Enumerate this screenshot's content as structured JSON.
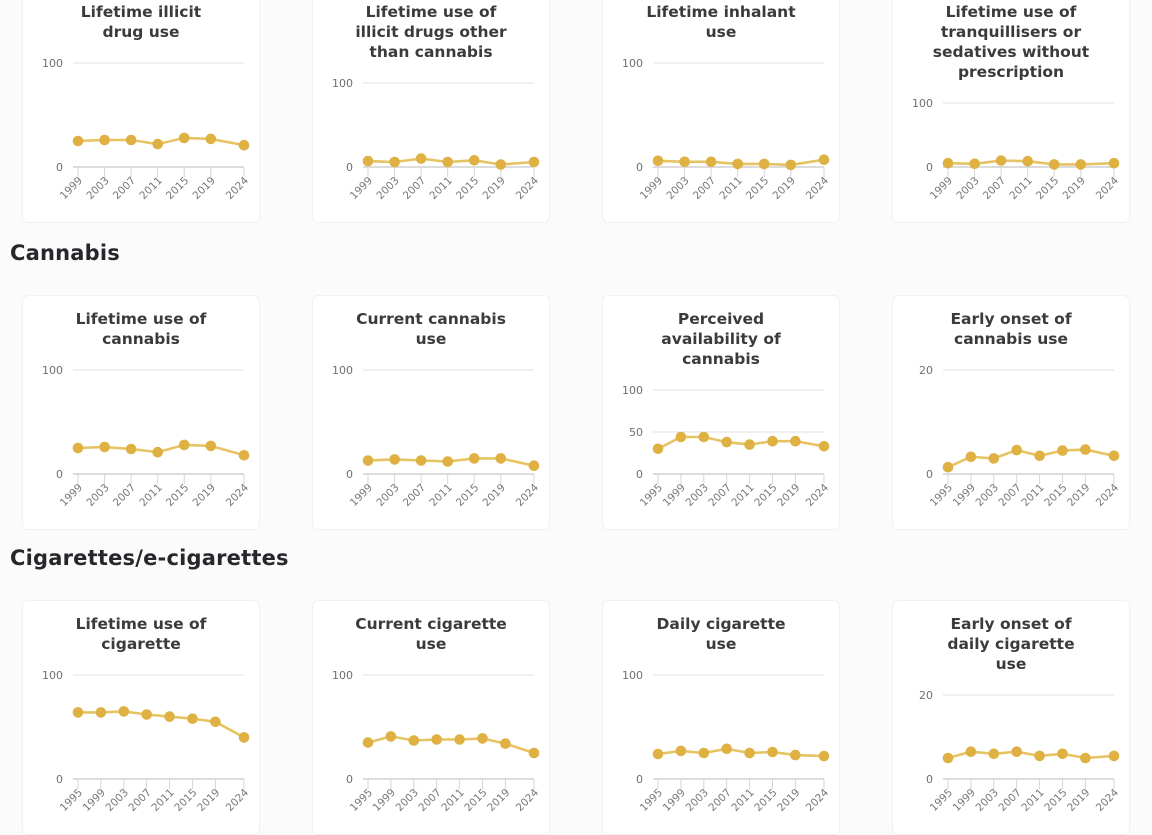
{
  "page": {
    "background": "#fbfbfb",
    "card_background": "#ffffff"
  },
  "colors": {
    "series_line": "#e7c463",
    "series_marker": "#dfb042",
    "gridline": "#e2e2e2",
    "axis_line": "#c7c7c7",
    "axis_tick": "#d6d6d6",
    "y_label": "#6f6f6f",
    "x_label": "#777777",
    "chart_title": "#3b3b3b",
    "section_header": "#26262b"
  },
  "sections": [
    {
      "header": null,
      "charts": [
        0,
        1,
        2,
        3
      ]
    },
    {
      "header": "Cannabis",
      "charts": [
        4,
        5,
        6,
        7
      ]
    },
    {
      "header": "Cigarettes/e-cigarettes",
      "charts": [
        8,
        9,
        10,
        11
      ]
    }
  ],
  "chart_data": [
    {
      "type": "line",
      "title": [
        "Lifetime illicit",
        "drug use"
      ],
      "x": [
        1999,
        2003,
        2007,
        2011,
        2015,
        2019,
        2024
      ],
      "values": [
        25,
        26,
        26,
        22,
        28,
        27,
        21
      ],
      "ylim": [
        0,
        100
      ],
      "yticks": [
        0,
        100
      ],
      "grid": true,
      "legend": "none"
    },
    {
      "type": "line",
      "title": [
        "Lifetime use of",
        "illicit drugs other",
        "than cannabis"
      ],
      "x": [
        1999,
        2003,
        2007,
        2011,
        2015,
        2019,
        2024
      ],
      "values": [
        7,
        6,
        10,
        6,
        8,
        3,
        6
      ],
      "ylim": [
        0,
        100
      ],
      "yticks": [
        0,
        100
      ],
      "grid": true,
      "legend": "none"
    },
    {
      "type": "line",
      "title": [
        "Lifetime inhalant",
        "use"
      ],
      "x": [
        1999,
        2003,
        2007,
        2011,
        2015,
        2019,
        2024
      ],
      "values": [
        6,
        5,
        5,
        3,
        3,
        2,
        7
      ],
      "ylim": [
        0,
        100
      ],
      "yticks": [
        0,
        100
      ],
      "grid": true,
      "legend": "none"
    },
    {
      "type": "line",
      "title": [
        "Lifetime use of",
        "tranquillisers or",
        "sedatives without",
        "prescription"
      ],
      "x": [
        1999,
        2003,
        2007,
        2011,
        2015,
        2019,
        2024
      ],
      "values": [
        6,
        5,
        10,
        9,
        4,
        4,
        6
      ],
      "ylim": [
        0,
        100
      ],
      "yticks": [
        0,
        100
      ],
      "grid": true,
      "legend": "none"
    },
    {
      "type": "line",
      "title": [
        "Lifetime use of",
        "cannabis"
      ],
      "x": [
        1999,
        2003,
        2007,
        2011,
        2015,
        2019,
        2024
      ],
      "values": [
        25,
        26,
        24,
        21,
        28,
        27,
        18
      ],
      "ylim": [
        0,
        100
      ],
      "yticks": [
        0,
        100
      ],
      "grid": true,
      "legend": "none"
    },
    {
      "type": "line",
      "title": [
        "Current cannabis",
        "use"
      ],
      "x": [
        1999,
        2003,
        2007,
        2011,
        2015,
        2019,
        2024
      ],
      "values": [
        13,
        14,
        13,
        12,
        15,
        15,
        8
      ],
      "ylim": [
        0,
        100
      ],
      "yticks": [
        0,
        100
      ],
      "grid": true,
      "legend": "none"
    },
    {
      "type": "line",
      "title": [
        "Perceived",
        "availability of",
        "cannabis"
      ],
      "x": [
        1995,
        1999,
        2003,
        2007,
        2011,
        2015,
        2019,
        2024
      ],
      "values": [
        30,
        44,
        44,
        38,
        35,
        39,
        39,
        33
      ],
      "ylim": [
        0,
        100
      ],
      "yticks": [
        0,
        50,
        100
      ],
      "grid": true,
      "legend": "none"
    },
    {
      "type": "line",
      "title": [
        "Early onset of",
        "cannabis use"
      ],
      "x": [
        1995,
        1999,
        2003,
        2007,
        2011,
        2015,
        2019,
        2024
      ],
      "values": [
        1.3,
        3.3,
        3,
        4.6,
        3.5,
        4.5,
        4.7,
        3.5
      ],
      "ylim": [
        0,
        20
      ],
      "yticks": [
        0,
        20
      ],
      "grid": true,
      "legend": "none"
    },
    {
      "type": "line",
      "title": [
        "Lifetime use of",
        "cigarette"
      ],
      "x": [
        1995,
        1999,
        2003,
        2007,
        2011,
        2015,
        2019,
        2024
      ],
      "values": [
        64,
        64,
        65,
        62,
        60,
        58,
        55,
        40
      ],
      "ylim": [
        0,
        100
      ],
      "yticks": [
        0,
        100
      ],
      "grid": true,
      "legend": "none"
    },
    {
      "type": "line",
      "title": [
        "Current cigarette",
        "use"
      ],
      "x": [
        1995,
        1999,
        2003,
        2007,
        2011,
        2015,
        2019,
        2024
      ],
      "values": [
        35,
        41,
        37,
        38,
        38,
        39,
        34,
        25
      ],
      "ylim": [
        0,
        100
      ],
      "yticks": [
        0,
        100
      ],
      "grid": true,
      "legend": "none"
    },
    {
      "type": "line",
      "title": [
        "Daily cigarette",
        "use"
      ],
      "x": [
        1995,
        1999,
        2003,
        2007,
        2011,
        2015,
        2019,
        2024
      ],
      "values": [
        24,
        27,
        25,
        29,
        25,
        26,
        23,
        22
      ],
      "ylim": [
        0,
        100
      ],
      "yticks": [
        0,
        100
      ],
      "grid": true,
      "legend": "none"
    },
    {
      "type": "line",
      "title": [
        "Early onset of",
        "daily cigarette",
        "use"
      ],
      "x": [
        1995,
        1999,
        2003,
        2007,
        2011,
        2015,
        2019,
        2024
      ],
      "values": [
        5,
        6.5,
        6,
        6.5,
        5.5,
        6,
        5,
        5.5
      ],
      "ylim": [
        0,
        20
      ],
      "yticks": [
        0,
        20
      ],
      "grid": true,
      "legend": "none"
    }
  ]
}
